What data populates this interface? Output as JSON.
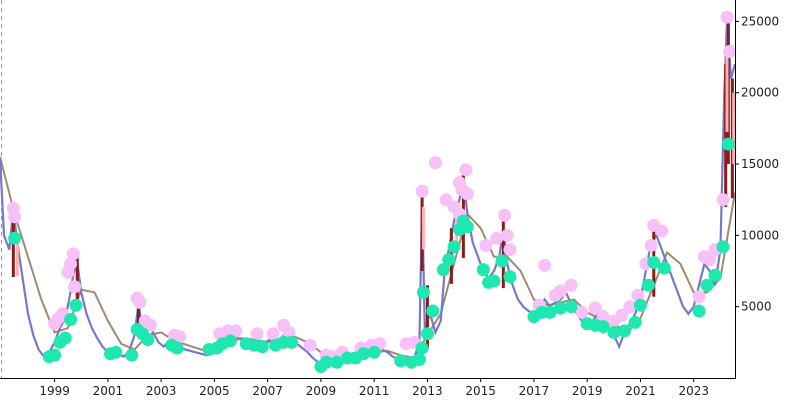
{
  "chart_data": {
    "type": "line",
    "title": "",
    "xlabel": "",
    "ylabel": "",
    "x_range": [
      1996.95,
      2024.55
    ],
    "y_range": [
      0,
      26500
    ],
    "y_axis_position": "right",
    "grid": false,
    "legend": "none",
    "x_ticks": [
      {
        "value": 1999,
        "label": "1999"
      },
      {
        "value": 2001,
        "label": "2001"
      },
      {
        "value": 2003,
        "label": "2003"
      },
      {
        "value": 2005,
        "label": "2005"
      },
      {
        "value": 2007,
        "label": "2007"
      },
      {
        "value": 2009,
        "label": "2009"
      },
      {
        "value": 2011,
        "label": "2011"
      },
      {
        "value": 2013,
        "label": "2013"
      },
      {
        "value": 2015,
        "label": "2015"
      },
      {
        "value": 2017,
        "label": "2017"
      },
      {
        "value": 2019,
        "label": "2019"
      },
      {
        "value": 2021,
        "label": "2021"
      },
      {
        "value": 2023,
        "label": "2023"
      }
    ],
    "y_ticks": [
      {
        "value": 5000,
        "label": "5000"
      },
      {
        "value": 10000,
        "label": "10000"
      },
      {
        "value": 15000,
        "label": "15000"
      },
      {
        "value": 20000,
        "label": "20000"
      },
      {
        "value": 25000,
        "label": "25000"
      }
    ],
    "colors": {
      "price": "#7777cc",
      "wick_up": "#8b1a1a",
      "wick_down": "#ffb0b0",
      "moving_average": "#a08a70",
      "high_markers": "#f7c0f7",
      "low_markers": "#1ee8b0",
      "dashed_line": "#999999",
      "axis": "#000000"
    },
    "price_series": [
      [
        1996.95,
        15500
      ],
      [
        1997.1,
        10000
      ],
      [
        1997.3,
        9000
      ],
      [
        1997.45,
        11800
      ],
      [
        1997.6,
        9500
      ],
      [
        1997.8,
        7000
      ],
      [
        1998.0,
        4500
      ],
      [
        1998.2,
        3000
      ],
      [
        1998.4,
        2000
      ],
      [
        1998.6,
        1500
      ],
      [
        1998.8,
        1800
      ],
      [
        1999.0,
        2500
      ],
      [
        1999.2,
        3500
      ],
      [
        1999.4,
        4200
      ],
      [
        1999.55,
        5500
      ],
      [
        1999.7,
        7200
      ],
      [
        1999.85,
        8200
      ],
      [
        2000.0,
        6000
      ],
      [
        2000.2,
        4500
      ],
      [
        2000.4,
        3500
      ],
      [
        2000.6,
        2800
      ],
      [
        2000.8,
        2200
      ],
      [
        2001.0,
        1800
      ],
      [
        2001.2,
        1600
      ],
      [
        2001.4,
        1700
      ],
      [
        2001.6,
        1500
      ],
      [
        2001.8,
        1900
      ],
      [
        2002.0,
        3000
      ],
      [
        2002.15,
        5200
      ],
      [
        2002.3,
        3500
      ],
      [
        2002.5,
        2800
      ],
      [
        2002.7,
        3200
      ],
      [
        2002.9,
        2500
      ],
      [
        2003.1,
        2200
      ],
      [
        2003.3,
        2600
      ],
      [
        2003.5,
        2400
      ],
      [
        2003.7,
        2200
      ],
      [
        2003.9,
        2000
      ],
      [
        2004.1,
        1900
      ],
      [
        2004.3,
        1800
      ],
      [
        2004.5,
        1700
      ],
      [
        2004.7,
        1600
      ],
      [
        2004.9,
        1800
      ],
      [
        2005.1,
        2200
      ],
      [
        2005.3,
        2600
      ],
      [
        2005.5,
        2900
      ],
      [
        2005.7,
        3000
      ],
      [
        2005.9,
        2800
      ],
      [
        2006.1,
        2600
      ],
      [
        2006.3,
        2500
      ],
      [
        2006.5,
        2400
      ],
      [
        2006.7,
        2300
      ],
      [
        2006.9,
        2500
      ],
      [
        2007.1,
        2700
      ],
      [
        2007.3,
        2600
      ],
      [
        2007.5,
        2800
      ],
      [
        2007.7,
        3200
      ],
      [
        2007.9,
        2900
      ],
      [
        2008.1,
        2400
      ],
      [
        2008.3,
        2100
      ],
      [
        2008.5,
        1800
      ],
      [
        2008.7,
        1400
      ],
      [
        2008.9,
        1100
      ],
      [
        2009.1,
        900
      ],
      [
        2009.3,
        1200
      ],
      [
        2009.5,
        1400
      ],
      [
        2009.7,
        1300
      ],
      [
        2009.9,
        1500
      ],
      [
        2010.1,
        1500
      ],
      [
        2010.3,
        1700
      ],
      [
        2010.5,
        1800
      ],
      [
        2010.7,
        1700
      ],
      [
        2010.9,
        2000
      ],
      [
        2011.1,
        2100
      ],
      [
        2011.3,
        2000
      ],
      [
        2011.5,
        1800
      ],
      [
        2011.7,
        1500
      ],
      [
        2011.9,
        1300
      ],
      [
        2012.1,
        1200
      ],
      [
        2012.3,
        1200
      ],
      [
        2012.5,
        1400
      ],
      [
        2012.7,
        2500
      ],
      [
        2012.8,
        12500
      ],
      [
        2012.9,
        3500
      ],
      [
        2013.1,
        4500
      ],
      [
        2013.3,
        3200
      ],
      [
        2013.5,
        4000
      ],
      [
        2013.65,
        7500
      ],
      [
        2013.8,
        9000
      ],
      [
        2014.0,
        11000
      ],
      [
        2014.2,
        12500
      ],
      [
        2014.35,
        14000
      ],
      [
        2014.5,
        11500
      ],
      [
        2014.7,
        9500
      ],
      [
        2014.9,
        8500
      ],
      [
        2015.1,
        7500
      ],
      [
        2015.3,
        7000
      ],
      [
        2015.5,
        7500
      ],
      [
        2015.7,
        8500
      ],
      [
        2015.85,
        10500
      ],
      [
        2016.0,
        8000
      ],
      [
        2016.2,
        6500
      ],
      [
        2016.4,
        5500
      ],
      [
        2016.6,
        5000
      ],
      [
        2016.8,
        4700
      ],
      [
        2017.0,
        4500
      ],
      [
        2017.2,
        5000
      ],
      [
        2017.4,
        5500
      ],
      [
        2017.6,
        5000
      ],
      [
        2017.8,
        5300
      ],
      [
        2018.0,
        5500
      ],
      [
        2018.2,
        6000
      ],
      [
        2018.4,
        5200
      ],
      [
        2018.6,
        4500
      ],
      [
        2018.8,
        4000
      ],
      [
        2019.0,
        3700
      ],
      [
        2019.2,
        4000
      ],
      [
        2019.4,
        4500
      ],
      [
        2019.6,
        3800
      ],
      [
        2019.8,
        3300
      ],
      [
        2020.0,
        3000
      ],
      [
        2020.2,
        2200
      ],
      [
        2020.4,
        3200
      ],
      [
        2020.6,
        3800
      ],
      [
        2020.8,
        4500
      ],
      [
        2021.0,
        5500
      ],
      [
        2021.2,
        7500
      ],
      [
        2021.4,
        9500
      ],
      [
        2021.6,
        10000
      ],
      [
        2021.8,
        9000
      ],
      [
        2022.0,
        8000
      ],
      [
        2022.2,
        7000
      ],
      [
        2022.4,
        6000
      ],
      [
        2022.6,
        5000
      ],
      [
        2022.8,
        4500
      ],
      [
        2023.0,
        5000
      ],
      [
        2023.2,
        6500
      ],
      [
        2023.4,
        8000
      ],
      [
        2023.6,
        7500
      ],
      [
        2023.8,
        6500
      ],
      [
        2024.0,
        9000
      ],
      [
        2024.15,
        20000
      ],
      [
        2024.25,
        25000
      ],
      [
        2024.4,
        21000
      ],
      [
        2024.55,
        22000
      ]
    ],
    "moving_average": [
      [
        1996.95,
        15500
      ],
      [
        1997.5,
        11500
      ],
      [
        1998.0,
        8500
      ],
      [
        1998.5,
        5500
      ],
      [
        1999.0,
        3200
      ],
      [
        1999.5,
        3500
      ],
      [
        2000.0,
        6200
      ],
      [
        2000.5,
        6000
      ],
      [
        2001.0,
        4000
      ],
      [
        2001.5,
        2400
      ],
      [
        2002.0,
        2000
      ],
      [
        2002.5,
        3000
      ],
      [
        2003.0,
        3200
      ],
      [
        2003.5,
        2600
      ],
      [
        2004.0,
        2300
      ],
      [
        2004.5,
        2000
      ],
      [
        2005.0,
        1900
      ],
      [
        2005.5,
        2400
      ],
      [
        2006.0,
        2800
      ],
      [
        2006.5,
        2700
      ],
      [
        2007.0,
        2500
      ],
      [
        2007.5,
        2700
      ],
      [
        2008.0,
        2900
      ],
      [
        2008.5,
        2500
      ],
      [
        2009.0,
        1800
      ],
      [
        2009.5,
        1300
      ],
      [
        2010.0,
        1400
      ],
      [
        2010.5,
        1600
      ],
      [
        2011.0,
        1800
      ],
      [
        2011.5,
        1900
      ],
      [
        2012.0,
        1600
      ],
      [
        2012.5,
        1400
      ],
      [
        2013.0,
        3000
      ],
      [
        2013.5,
        4500
      ],
      [
        2014.0,
        8000
      ],
      [
        2014.5,
        11500
      ],
      [
        2015.0,
        10500
      ],
      [
        2015.5,
        8500
      ],
      [
        2016.0,
        8500
      ],
      [
        2016.5,
        7500
      ],
      [
        2017.0,
        5500
      ],
      [
        2017.5,
        5100
      ],
      [
        2018.0,
        5300
      ],
      [
        2018.5,
        5500
      ],
      [
        2019.0,
        4600
      ],
      [
        2019.5,
        4100
      ],
      [
        2020.0,
        3800
      ],
      [
        2020.5,
        3200
      ],
      [
        2021.0,
        4200
      ],
      [
        2021.5,
        6500
      ],
      [
        2022.0,
        8800
      ],
      [
        2022.5,
        8000
      ],
      [
        2023.0,
        6000
      ],
      [
        2023.5,
        6000
      ],
      [
        2024.0,
        7000
      ],
      [
        2024.55,
        13000
      ]
    ],
    "wicks_up": [
      [
        1997.45,
        11800
      ],
      [
        1999.85,
        8500
      ],
      [
        2002.15,
        5500
      ],
      [
        2012.8,
        13000
      ],
      [
        2013.0,
        6500
      ],
      [
        2013.9,
        10500
      ],
      [
        2014.35,
        14500
      ],
      [
        2015.85,
        11000
      ],
      [
        2021.5,
        10500
      ],
      [
        2024.2,
        22000
      ],
      [
        2024.3,
        25000
      ],
      [
        2024.45,
        21000
      ]
    ],
    "wicks_down": [
      [
        1997.6,
        9500
      ],
      [
        2012.85,
        12000
      ],
      [
        2014.1,
        12000
      ],
      [
        2024.25,
        23000
      ],
      [
        2024.5,
        20000
      ]
    ],
    "high_markers": [
      [
        1997.45,
        11900
      ],
      [
        1997.5,
        11300
      ],
      [
        1999.0,
        3800
      ],
      [
        1999.15,
        4200
      ],
      [
        1999.3,
        4500
      ],
      [
        1999.5,
        7400
      ],
      [
        1999.6,
        8000
      ],
      [
        1999.7,
        8700
      ],
      [
        1999.75,
        6400
      ],
      [
        2002.1,
        5600
      ],
      [
        2002.2,
        5300
      ],
      [
        2002.4,
        4000
      ],
      [
        2002.6,
        3700
      ],
      [
        2003.5,
        3000
      ],
      [
        2003.7,
        2900
      ],
      [
        2005.2,
        3100
      ],
      [
        2005.5,
        3300
      ],
      [
        2005.8,
        3300
      ],
      [
        2006.6,
        3100
      ],
      [
        2007.2,
        3100
      ],
      [
        2007.6,
        3700
      ],
      [
        2007.8,
        3200
      ],
      [
        2008.6,
        2300
      ],
      [
        2009.2,
        1600
      ],
      [
        2009.4,
        1500
      ],
      [
        2009.8,
        1800
      ],
      [
        2010.5,
        2100
      ],
      [
        2010.9,
        2300
      ],
      [
        2011.2,
        2400
      ],
      [
        2012.2,
        2400
      ],
      [
        2012.5,
        2500
      ],
      [
        2012.8,
        13100
      ],
      [
        2013.3,
        15100
      ],
      [
        2013.7,
        12500
      ],
      [
        2014.0,
        12000
      ],
      [
        2014.2,
        13700
      ],
      [
        2014.3,
        13200
      ],
      [
        2014.45,
        14600
      ],
      [
        2014.5,
        12900
      ],
      [
        2014.2,
        11500
      ],
      [
        2015.2,
        9300
      ],
      [
        2015.6,
        9800
      ],
      [
        2015.9,
        11400
      ],
      [
        2016.0,
        10000
      ],
      [
        2016.1,
        9000
      ],
      [
        2017.2,
        5100
      ],
      [
        2017.4,
        7900
      ],
      [
        2017.8,
        5800
      ],
      [
        2018.0,
        6100
      ],
      [
        2018.4,
        6500
      ],
      [
        2018.8,
        4600
      ],
      [
        2019.3,
        4900
      ],
      [
        2019.6,
        4300
      ],
      [
        2020.0,
        4000
      ],
      [
        2020.3,
        4400
      ],
      [
        2020.6,
        5000
      ],
      [
        2020.9,
        5800
      ],
      [
        2021.2,
        8000
      ],
      [
        2021.4,
        9300
      ],
      [
        2021.5,
        10700
      ],
      [
        2021.8,
        10300
      ],
      [
        2023.2,
        5700
      ],
      [
        2023.4,
        8500
      ],
      [
        2023.6,
        8300
      ],
      [
        2023.8,
        9000
      ],
      [
        2024.1,
        12500
      ],
      [
        2024.25,
        25300
      ],
      [
        2024.35,
        22900
      ]
    ],
    "low_markers": [
      [
        1997.5,
        9800
      ],
      [
        1998.8,
        1500
      ],
      [
        1999.0,
        1600
      ],
      [
        1999.2,
        2500
      ],
      [
        1999.4,
        2800
      ],
      [
        1999.6,
        4100
      ],
      [
        1999.8,
        5100
      ],
      [
        2001.1,
        1700
      ],
      [
        2001.3,
        1800
      ],
      [
        2001.9,
        1600
      ],
      [
        2002.1,
        3400
      ],
      [
        2002.3,
        3100
      ],
      [
        2002.5,
        2700
      ],
      [
        2003.4,
        2300
      ],
      [
        2003.6,
        2100
      ],
      [
        2004.8,
        2000
      ],
      [
        2005.1,
        2100
      ],
      [
        2005.3,
        2400
      ],
      [
        2005.6,
        2600
      ],
      [
        2006.2,
        2400
      ],
      [
        2006.5,
        2300
      ],
      [
        2006.8,
        2200
      ],
      [
        2007.3,
        2300
      ],
      [
        2007.6,
        2500
      ],
      [
        2007.9,
        2500
      ],
      [
        2009.0,
        800
      ],
      [
        2009.2,
        1100
      ],
      [
        2009.6,
        1100
      ],
      [
        2010.0,
        1400
      ],
      [
        2010.3,
        1400
      ],
      [
        2010.6,
        1700
      ],
      [
        2011.0,
        1800
      ],
      [
        2012.0,
        1200
      ],
      [
        2012.4,
        1100
      ],
      [
        2012.7,
        1300
      ],
      [
        2012.8,
        2100
      ],
      [
        2012.85,
        6000
      ],
      [
        2013.0,
        3100
      ],
      [
        2013.2,
        4700
      ],
      [
        2013.6,
        7600
      ],
      [
        2013.8,
        8300
      ],
      [
        2014.0,
        9200
      ],
      [
        2014.2,
        10400
      ],
      [
        2014.35,
        11000
      ],
      [
        2014.5,
        10600
      ],
      [
        2015.1,
        7600
      ],
      [
        2015.3,
        6700
      ],
      [
        2015.5,
        6800
      ],
      [
        2015.8,
        8200
      ],
      [
        2016.1,
        7100
      ],
      [
        2017.0,
        4300
      ],
      [
        2017.3,
        4600
      ],
      [
        2017.6,
        4600
      ],
      [
        2018.0,
        4900
      ],
      [
        2018.4,
        5000
      ],
      [
        2019.0,
        3800
      ],
      [
        2019.3,
        3700
      ],
      [
        2019.6,
        3600
      ],
      [
        2020.0,
        3200
      ],
      [
        2020.4,
        3300
      ],
      [
        2020.8,
        3900
      ],
      [
        2021.0,
        5100
      ],
      [
        2021.3,
        6500
      ],
      [
        2021.5,
        8100
      ],
      [
        2021.9,
        7700
      ],
      [
        2023.2,
        4700
      ],
      [
        2023.5,
        6500
      ],
      [
        2023.8,
        7200
      ],
      [
        2024.1,
        9200
      ],
      [
        2024.3,
        16400
      ]
    ]
  }
}
